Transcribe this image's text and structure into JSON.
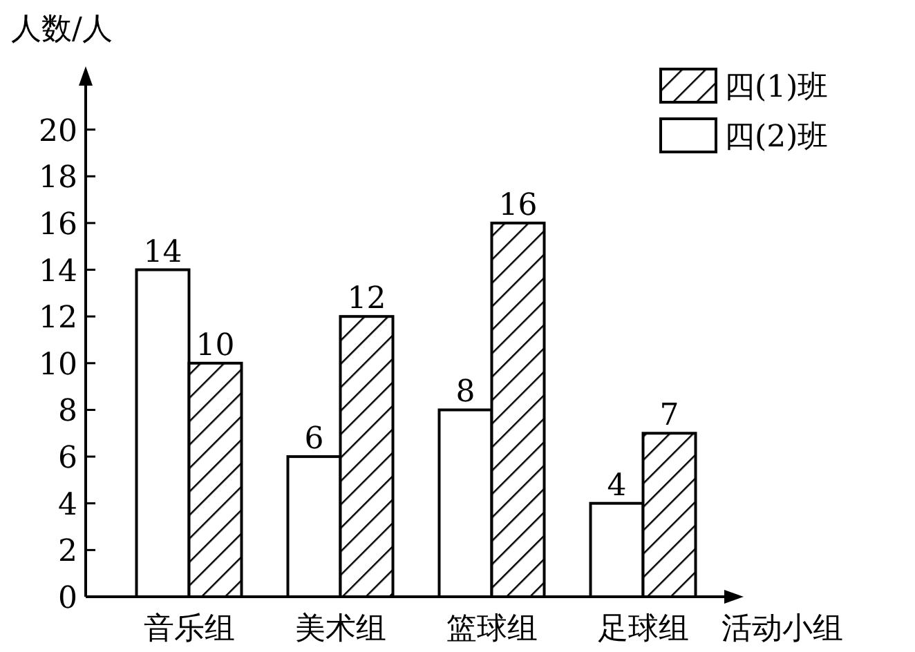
{
  "chart_data": {
    "type": "bar",
    "xlabel": "活动小组",
    "ylabel": "人数/人",
    "categories": [
      "音乐组",
      "美术组",
      "篮球组",
      "足球组"
    ],
    "series": [
      {
        "name": "四(2)班",
        "color": "#ffffff",
        "values": [
          14,
          6,
          8,
          4
        ]
      },
      {
        "name": "四(1)班",
        "color": "#ffffff",
        "values": [
          10,
          12,
          16,
          7
        ]
      }
    ],
    "ylim": [
      0,
      22
    ],
    "yticks": [
      0,
      2,
      4,
      6,
      8,
      10,
      12,
      14,
      16,
      18,
      20
    ],
    "data_labels": true,
    "legend": "top right",
    "grid": false
  }
}
